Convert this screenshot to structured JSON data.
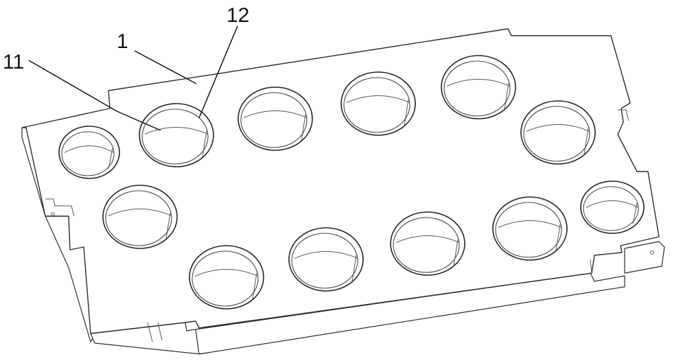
{
  "figure": {
    "reference_labels": [
      {
        "id": "plate",
        "text": "1"
      },
      {
        "id": "hole",
        "text": "11"
      },
      {
        "id": "hole-wall",
        "text": "12"
      }
    ],
    "hole_count": 12
  }
}
